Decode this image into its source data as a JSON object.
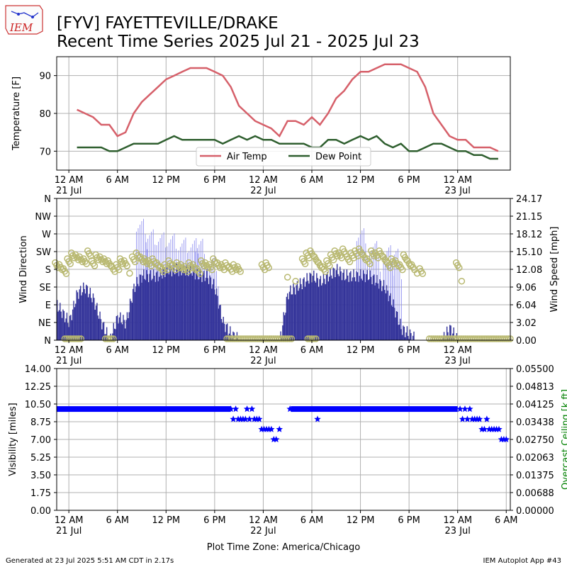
{
  "header": {
    "logo_text": "IEM",
    "title_line1": "[FYV] FAYETTEVILLE/DRAKE",
    "title_line2": "Recent Time Series 2025 Jul 21 - 2025 Jul 23"
  },
  "footer": {
    "generated": "Generated at 23 Jul 2025 5:51 AM CDT in 2.17s",
    "app": "IEM Autoplot App #43",
    "timezone_label": "Plot Time Zone: America/Chicago"
  },
  "colors": {
    "air_temp": "#d6606a",
    "dew_point": "#2f5f2f",
    "wind_speed": "#333399",
    "wind_gust": "#8888ee",
    "wind_dir": "#b8b870",
    "visibility": "#0000ff",
    "ceiling_label": "#008000",
    "grid": "#b0b0b0"
  },
  "chart_data": [
    {
      "type": "line",
      "ylabel": "Temperature [F]",
      "xlim_hours": [
        -1.5,
        54.5
      ],
      "ylim": [
        65,
        95
      ],
      "yticks": [
        "70",
        "80",
        "90"
      ],
      "yticks_values": [
        70,
        80,
        90
      ],
      "x_ticks": [
        {
          "h": 0,
          "label": "12 AM",
          "date": "21 Jul"
        },
        {
          "h": 6,
          "label": "6 AM",
          "date": ""
        },
        {
          "h": 12,
          "label": "12 PM",
          "date": ""
        },
        {
          "h": 18,
          "label": "6 PM",
          "date": ""
        },
        {
          "h": 24,
          "label": "12 AM",
          "date": "22 Jul"
        },
        {
          "h": 30,
          "label": "6 AM",
          "date": ""
        },
        {
          "h": 36,
          "label": "12 PM",
          "date": ""
        },
        {
          "h": 42,
          "label": "6 PM",
          "date": ""
        },
        {
          "h": 48,
          "label": "12 AM",
          "date": "23 Jul"
        }
      ],
      "legend": [
        "Air Temp",
        "Dew Point"
      ],
      "series": [
        {
          "name": "Air Temp",
          "x": [
            1,
            2,
            3,
            4,
            5,
            6,
            7,
            8,
            9,
            10,
            11,
            12,
            13,
            14,
            15,
            16,
            17,
            18,
            19,
            20,
            21,
            22,
            23,
            24,
            25,
            26,
            27,
            28,
            29,
            30,
            31,
            32,
            33,
            34,
            35,
            36,
            37,
            38,
            39,
            40,
            41,
            42,
            43,
            44,
            45,
            46,
            47,
            48,
            49,
            50,
            51,
            52,
            53
          ],
          "values": [
            81,
            80,
            79,
            77,
            77,
            74,
            75,
            80,
            83,
            85,
            87,
            89,
            90,
            91,
            92,
            92,
            92,
            91,
            90,
            87,
            82,
            80,
            78,
            77,
            76,
            74,
            78,
            78,
            77,
            79,
            77,
            80,
            84,
            86,
            89,
            91,
            91,
            92,
            93,
            93,
            93,
            92,
            91,
            87,
            80,
            77,
            74,
            73,
            73,
            71,
            71,
            71,
            70
          ]
        },
        {
          "name": "Dew Point",
          "x": [
            1,
            2,
            3,
            4,
            5,
            6,
            7,
            8,
            9,
            10,
            11,
            12,
            13,
            14,
            15,
            16,
            17,
            18,
            19,
            20,
            21,
            22,
            23,
            24,
            25,
            26,
            27,
            28,
            29,
            30,
            31,
            32,
            33,
            34,
            35,
            36,
            37,
            38,
            39,
            40,
            41,
            42,
            43,
            44,
            45,
            46,
            47,
            48,
            49,
            50,
            51,
            52,
            53
          ],
          "values": [
            71,
            71,
            71,
            71,
            70,
            70,
            71,
            72,
            72,
            72,
            72,
            73,
            74,
            73,
            73,
            73,
            73,
            73,
            72,
            73,
            74,
            73,
            74,
            73,
            73,
            72,
            72,
            72,
            72,
            71,
            71,
            73,
            73,
            72,
            73,
            74,
            73,
            74,
            72,
            71,
            72,
            70,
            70,
            71,
            72,
            72,
            71,
            70,
            70,
            69,
            69,
            68,
            68
          ]
        }
      ]
    },
    {
      "type": "bar",
      "ylabel": "Wind Direction",
      "ylabel_right": "Wind Speed [mph]",
      "dir_ticks": [
        "N",
        "NE",
        "E",
        "SE",
        "S",
        "SW",
        "W",
        "NW",
        "N"
      ],
      "speed_ticks": [
        "0.00",
        "3.02",
        "6.04",
        "9.06",
        "12.08",
        "15.10",
        "18.12",
        "21.15",
        "24.17"
      ],
      "speed_max": 24.17,
      "speed_profile": {
        "hours": [
          -1.5,
          -1,
          0,
          1,
          2,
          3,
          4,
          5,
          6,
          7,
          8,
          9,
          10,
          11,
          12,
          13,
          14,
          15,
          16,
          17,
          18,
          19,
          20,
          21,
          22,
          23,
          24,
          25,
          26,
          27,
          28,
          29,
          30,
          31,
          32,
          33,
          34,
          35,
          36,
          37,
          38,
          39,
          40,
          41,
          42,
          43,
          44,
          45,
          46,
          47,
          48,
          49,
          50,
          51,
          52,
          53,
          54,
          54.5
        ],
        "mph": [
          6,
          5,
          3,
          8,
          9,
          7,
          3,
          0,
          4,
          3,
          9,
          11,
          11,
          11,
          12,
          12,
          12,
          12,
          11,
          11,
          9,
          3,
          1,
          0,
          0,
          0,
          0,
          0,
          0,
          8,
          9,
          10,
          11,
          10,
          11,
          12,
          11,
          11,
          11,
          11,
          10,
          9,
          6,
          2,
          1,
          0,
          0,
          0,
          0,
          2,
          0,
          0,
          0,
          0,
          0,
          0,
          0,
          0
        ]
      },
      "gust_peaks": [
        {
          "h": 9.0,
          "mph": 22.3
        },
        {
          "h": 10.2,
          "mph": 20.5
        },
        {
          "h": 11.5,
          "mph": 20.0
        },
        {
          "h": 12.8,
          "mph": 19.8
        },
        {
          "h": 14.2,
          "mph": 19.1
        },
        {
          "h": 15.5,
          "mph": 19.0
        },
        {
          "h": 16.3,
          "mph": 18.9
        },
        {
          "h": 17.8,
          "mph": 16.0
        },
        {
          "h": 36.2,
          "mph": 20.7
        },
        {
          "h": 37.8,
          "mph": 18.5
        },
        {
          "h": 39.5,
          "mph": 17.8
        },
        {
          "h": 40.4,
          "mph": 17.2
        }
      ],
      "dir_points": {
        "hours": [
          -1.5,
          -1,
          -0.5,
          0,
          0.5,
          1,
          1.5,
          2,
          2.5,
          3,
          3.5,
          4,
          4.5,
          5,
          5.5,
          6,
          6.5,
          7,
          7.5,
          8,
          8.5,
          9,
          9.5,
          10,
          10.5,
          11,
          11.5,
          12,
          12.5,
          13,
          13.5,
          14,
          14.5,
          15,
          15.5,
          16,
          16.5,
          17,
          17.5,
          18,
          18.5,
          19,
          19.5,
          20,
          20.5,
          21,
          24,
          24.5,
          27,
          28,
          29,
          29.5,
          30,
          30.5,
          31,
          31.5,
          32,
          32.5,
          33,
          33.5,
          34,
          34.5,
          35,
          35.5,
          36,
          36.5,
          37,
          37.5,
          38,
          38.5,
          39,
          39.5,
          40,
          40.5,
          41,
          41.5,
          42,
          42.5,
          43,
          43.5,
          48,
          48.5
        ],
        "deg": [
          190,
          185,
          175,
          200,
          215,
          210,
          205,
          200,
          220,
          195,
          210,
          205,
          200,
          195,
          180,
          185,
          200,
          195,
          170,
          205,
          215,
          205,
          200,
          195,
          200,
          190,
          180,
          185,
          195,
          185,
          190,
          185,
          180,
          190,
          185,
          175,
          195,
          190,
          185,
          200,
          190,
          185,
          190,
          180,
          185,
          180,
          185,
          190,
          160,
          150,
          200,
          215,
          220,
          205,
          190,
          180,
          195,
          210,
          220,
          215,
          225,
          205,
          215,
          220,
          225,
          210,
          200,
          220,
          215,
          220,
          205,
          190,
          200,
          195,
          185,
          210,
          195,
          185,
          170,
          175,
          190,
          150
        ]
      },
      "calm_ranges_hours": [
        [
          -0.5,
          1.5
        ],
        [
          4.5,
          5.5
        ],
        [
          19.5,
          27.5
        ],
        [
          29.5,
          30.5
        ],
        [
          44.5,
          54.5
        ]
      ]
    },
    {
      "type": "scatter",
      "ylabel": "Visibility [miles]",
      "ylabel_right": "Overcast Ceiling [k ft]",
      "vis_ticks": [
        "0.00",
        "1.75",
        "3.50",
        "5.25",
        "7.00",
        "8.75",
        "10.50",
        "12.25",
        "14.00"
      ],
      "ceiling_ticks": [
        "0.00000",
        "0.00688",
        "0.01375",
        "0.02063",
        "0.02750",
        "0.03438",
        "0.04125",
        "0.04813",
        "0.05500"
      ],
      "vis_max": 14,
      "x_ticks": [
        {
          "h": 0,
          "label": "12 AM",
          "date": "21 Jul"
        },
        {
          "h": 6,
          "label": "6 AM",
          "date": ""
        },
        {
          "h": 12,
          "label": "12 PM",
          "date": ""
        },
        {
          "h": 18,
          "label": "6 PM",
          "date": ""
        },
        {
          "h": 24,
          "label": "12 AM",
          "date": "22 Jul"
        },
        {
          "h": 30,
          "label": "6 AM",
          "date": ""
        },
        {
          "h": 36,
          "label": "12 PM",
          "date": ""
        },
        {
          "h": 42,
          "label": "6 PM",
          "date": ""
        },
        {
          "h": 48,
          "label": "12 AM",
          "date": "23 Jul"
        },
        {
          "h": 54,
          "label": "6 AM",
          "date": ""
        }
      ],
      "points": {
        "hours": [
          20,
          20.3,
          20.6,
          20.9,
          21.2,
          21.5,
          21.8,
          22,
          22.3,
          22.6,
          22.9,
          23.2,
          23.5,
          23.8,
          24.1,
          24.4,
          24.7,
          25,
          25.3,
          25.6,
          26,
          27.3,
          30.7,
          48.3,
          48.6,
          48.9,
          49.2,
          49.5,
          49.8,
          50.1,
          50.4,
          50.7,
          51,
          51.3,
          51.6,
          51.9,
          52.2,
          52.5,
          52.8,
          53.1,
          53.4,
          53.7,
          54
        ],
        "miles": [
          10,
          9,
          10,
          9,
          9,
          9,
          9,
          10,
          9,
          10,
          9,
          9,
          9,
          8,
          8,
          8,
          8,
          8,
          7,
          7,
          8,
          10,
          9,
          10,
          9,
          10,
          9,
          10,
          9,
          9,
          9,
          9,
          8,
          8,
          9,
          8,
          8,
          8,
          8,
          8,
          7,
          7,
          7
        ]
      }
    }
  ]
}
